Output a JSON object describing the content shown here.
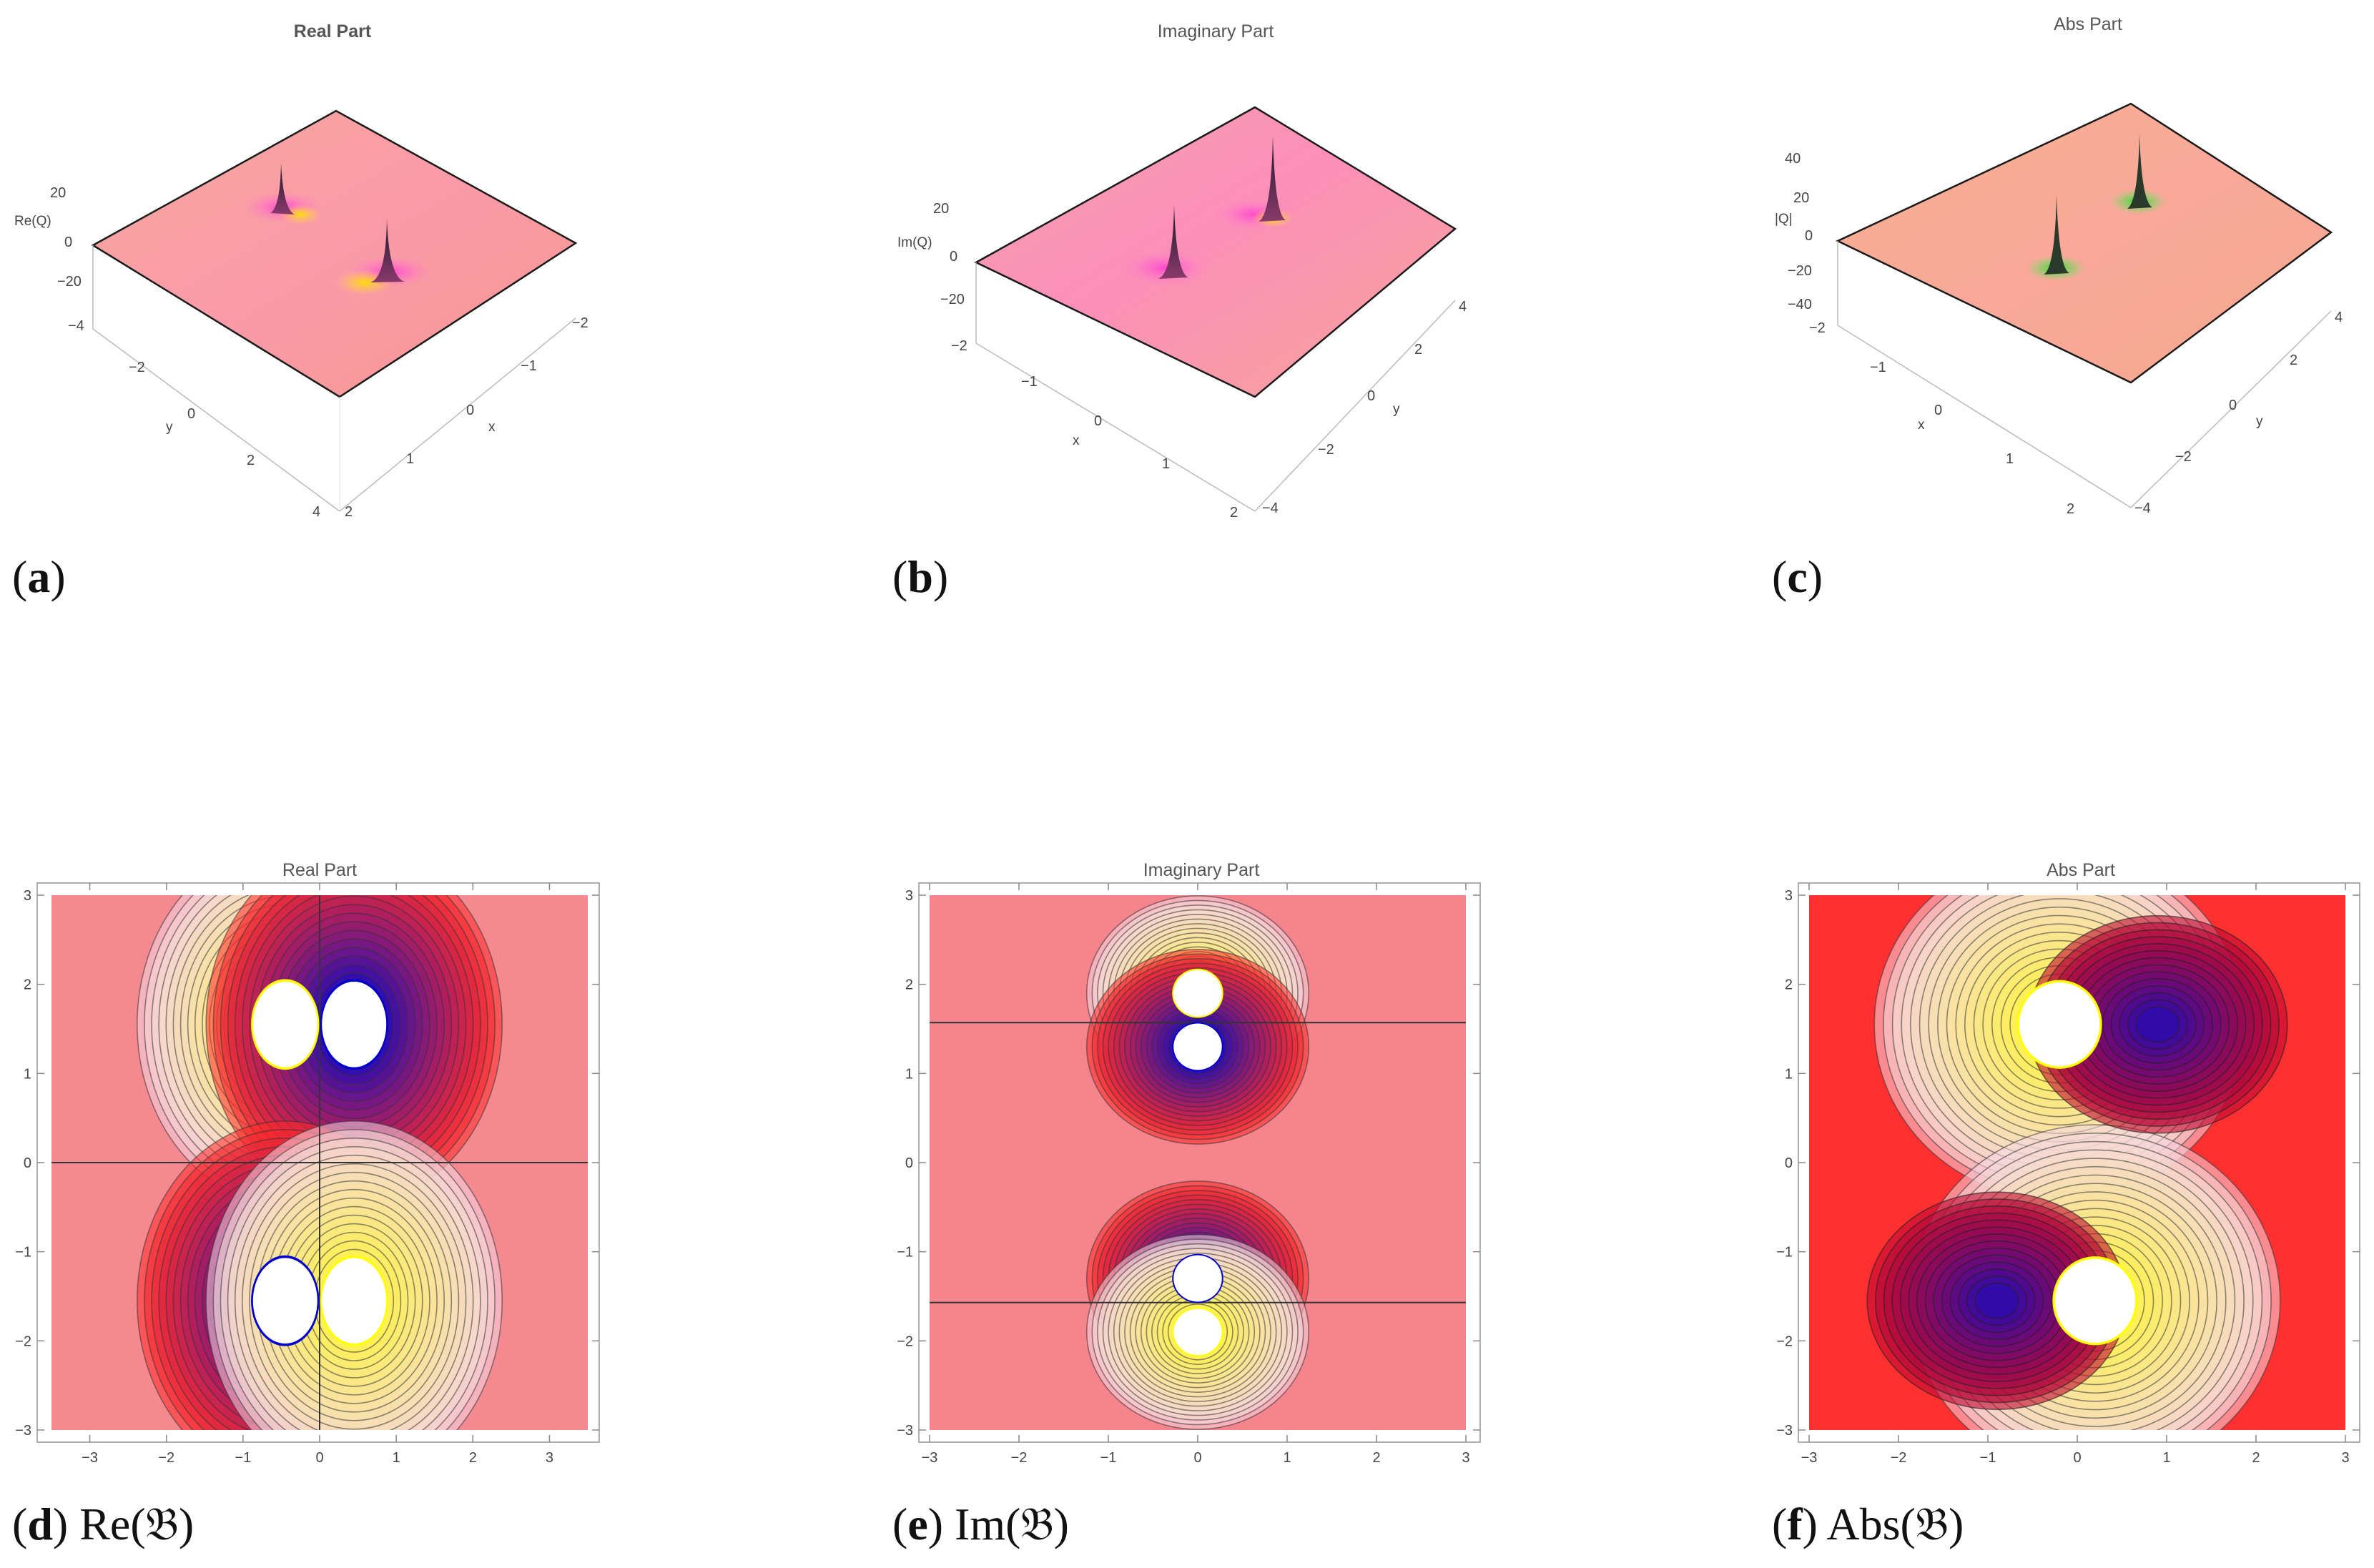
{
  "chart_data": [
    {
      "id": "a",
      "type": "surface3d",
      "title": "Real Part",
      "axes": {
        "x_label": "x",
        "y_label": "y",
        "z_label": "Re(Q)",
        "x_ticks": [
          "−2",
          "−1",
          "0",
          "1",
          "2"
        ],
        "y_ticks": [
          "−4",
          "−2",
          "0",
          "2",
          "4"
        ],
        "z_ticks": [
          "20",
          "0",
          "−20"
        ]
      },
      "peaks": [
        {
          "x": -0.5,
          "y": -1.5,
          "z": 25
        },
        {
          "x": 0.5,
          "y": 1.5,
          "z": 25
        }
      ],
      "caption_letter": "a",
      "caption_text": ""
    },
    {
      "id": "b",
      "type": "surface3d",
      "title": "Imaginary Part",
      "axes": {
        "x_label": "x",
        "y_label": "y",
        "z_label": "Im(Q)",
        "x_ticks": [
          "−2",
          "−1",
          "0",
          "1",
          "2"
        ],
        "y_ticks": [
          "4",
          "2",
          "0",
          "−2",
          "−4"
        ],
        "z_ticks": [
          "20",
          "0",
          "−20"
        ]
      },
      "peaks": [
        {
          "x": -0.2,
          "y": 1.5,
          "z": 25
        },
        {
          "x": 0.2,
          "y": -1.5,
          "z": 25
        }
      ],
      "caption_letter": "b",
      "caption_text": ""
    },
    {
      "id": "c",
      "type": "surface3d",
      "title": "Abs Part",
      "axes": {
        "x_label": "x",
        "y_label": "y",
        "z_label": "|Q|",
        "x_ticks": [
          "−2",
          "−1",
          "0",
          "1",
          "2"
        ],
        "y_ticks": [
          "4",
          "2",
          "0",
          "−2",
          "−4"
        ],
        "z_ticks": [
          "40",
          "20",
          "0",
          "−20",
          "−40"
        ]
      },
      "peaks": [
        {
          "x": -0.2,
          "y": 1.5,
          "z": 40
        },
        {
          "x": 0.2,
          "y": -1.5,
          "z": 40
        }
      ],
      "caption_letter": "c",
      "caption_text": ""
    },
    {
      "id": "d",
      "type": "contour",
      "title": "Real Part",
      "x_ticks": [
        "−3",
        "−2",
        "−1",
        "0",
        "1",
        "2",
        "3"
      ],
      "y_ticks": [
        "3",
        "2",
        "1",
        "0",
        "−1",
        "−2",
        "−3"
      ],
      "xlim": [
        -3.5,
        3.5
      ],
      "ylim": [
        -3,
        3
      ],
      "holes": [
        {
          "x": -0.45,
          "y": 1.55,
          "rx": 0.42,
          "ry": 0.48,
          "ring": "#ffff00"
        },
        {
          "x": 0.45,
          "y": 1.55,
          "rx": 0.42,
          "ry": 0.48,
          "ring": "#0000cc"
        },
        {
          "x": -0.45,
          "y": -1.55,
          "rx": 0.42,
          "ry": 0.48,
          "ring": "#0000cc"
        },
        {
          "x": 0.45,
          "y": -1.55,
          "rx": 0.42,
          "ry": 0.48,
          "ring": "#ffff00"
        }
      ],
      "zero_lines": {
        "horizontal": 0,
        "vertical": 0
      },
      "caption_letter": "d",
      "caption_text": "Re(𝔅)"
    },
    {
      "id": "e",
      "type": "contour",
      "title": "Imaginary Part",
      "x_ticks": [
        "−3",
        "−2",
        "−1",
        "0",
        "1",
        "2",
        "3"
      ],
      "y_ticks": [
        "3",
        "2",
        "1",
        "0",
        "−1",
        "−2",
        "−3"
      ],
      "xlim": [
        -3,
        3
      ],
      "ylim": [
        -3,
        3
      ],
      "holes": [
        {
          "x": 0,
          "y": 1.9,
          "rx": 0.27,
          "ry": 0.26,
          "ring": "#ffff00"
        },
        {
          "x": 0,
          "y": 1.3,
          "rx": 0.27,
          "ry": 0.26,
          "ring": "#0000cc"
        },
        {
          "x": 0,
          "y": -1.3,
          "rx": 0.27,
          "ry": 0.26,
          "ring": "#0000cc"
        },
        {
          "x": 0,
          "y": -1.9,
          "rx": 0.27,
          "ry": 0.26,
          "ring": "#ffff00"
        }
      ],
      "zero_lines": {
        "horizontal_at": [
          1.57,
          -1.57
        ]
      },
      "caption_letter": "e",
      "caption_text": "Im(𝔅)"
    },
    {
      "id": "f",
      "type": "contour",
      "title": "Abs Part",
      "x_ticks": [
        "−3",
        "−2",
        "−1",
        "0",
        "1",
        "2",
        "3"
      ],
      "y_ticks": [
        "3",
        "2",
        "1",
        "0",
        "−1",
        "−2",
        "−3"
      ],
      "xlim": [
        -3,
        3
      ],
      "ylim": [
        -3,
        3
      ],
      "holes": [
        {
          "x": -0.2,
          "y": 1.55,
          "rx": 0.45,
          "ry": 0.47,
          "ring": "#ffff00"
        },
        {
          "x": 0.2,
          "y": -1.55,
          "rx": 0.45,
          "ry": 0.47,
          "ring": "#ffff00"
        }
      ],
      "sinks": [
        {
          "x": 0.9,
          "y": 1.55
        },
        {
          "x": -0.9,
          "y": -1.55
        }
      ],
      "caption_letter": "f",
      "caption_text": "Abs(𝔅)"
    }
  ],
  "colors": {
    "surface_base": "#f7a39a",
    "surface_pink": "#ff7fd0",
    "ridge_green": "#33cc33",
    "contour_red": "#ff2a2a",
    "contour_yellow": "#ffff00",
    "contour_blue": "#0000cc"
  }
}
